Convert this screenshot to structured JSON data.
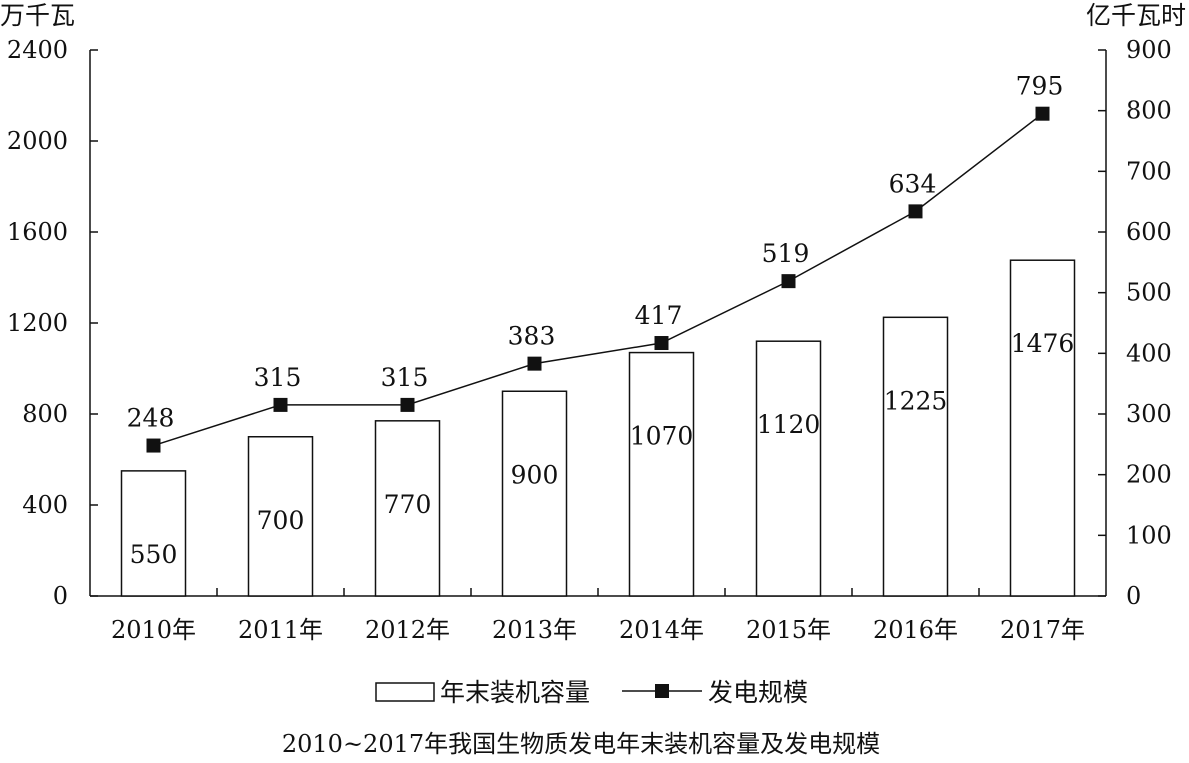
{
  "chart_data": {
    "type": "bar",
    "title": "2010~2017年我国生物质发电年末装机容量及发电规模",
    "categories": [
      "2010年",
      "2011年",
      "2012年",
      "2013年",
      "2014年",
      "2015年",
      "2016年",
      "2017年"
    ],
    "series": [
      {
        "name": "年末装机容量",
        "type": "bar",
        "axis": "left",
        "values": [
          550,
          700,
          770,
          900,
          1070,
          1120,
          1225,
          1476
        ]
      },
      {
        "name": "发电规模",
        "type": "line",
        "axis": "right",
        "values": [
          248,
          315,
          315,
          383,
          417,
          519,
          634,
          795
        ]
      }
    ],
    "y_left": {
      "label": "万千瓦",
      "ylim": [
        0,
        2400
      ],
      "ticks": [
        0,
        400,
        800,
        1200,
        1600,
        2000,
        2400
      ]
    },
    "y_right": {
      "label": "亿千瓦时",
      "ylim": [
        0,
        900
      ],
      "ticks": [
        0,
        100,
        200,
        300,
        400,
        500,
        600,
        700,
        800,
        900
      ]
    },
    "grid": false,
    "legend_position": "bottom-center"
  }
}
